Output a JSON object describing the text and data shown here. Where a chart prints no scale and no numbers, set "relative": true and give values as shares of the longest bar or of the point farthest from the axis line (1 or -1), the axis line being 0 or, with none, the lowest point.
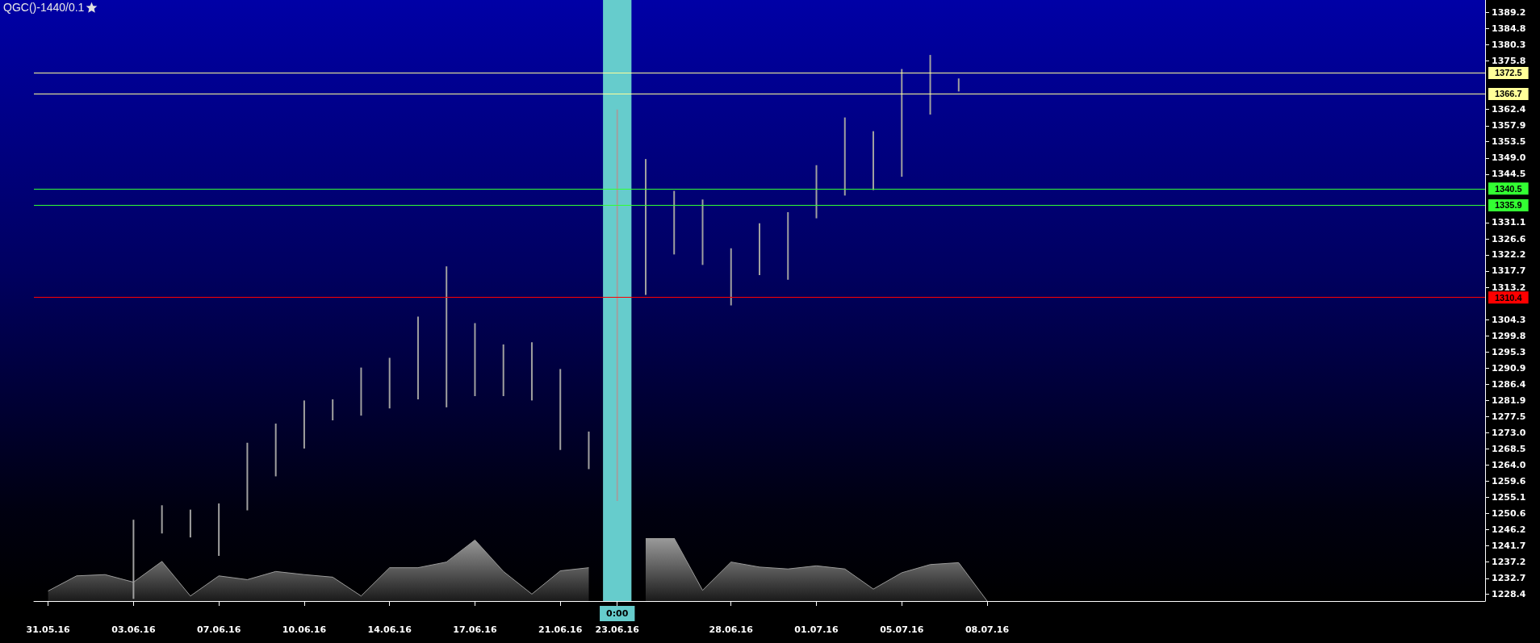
{
  "chart_data": [
    {
      "type": "bar",
      "title": "QGC()-1440/0.1",
      "categories": [
        "31.05.16",
        null,
        null,
        "03.06.16",
        null,
        null,
        "07.06.16",
        null,
        null,
        "10.06.16",
        null,
        null,
        "14.06.16",
        null,
        null,
        "17.06.16",
        null,
        null,
        "21.06.16",
        null,
        "23.06.16",
        null,
        null,
        null,
        "28.06.16",
        null,
        null,
        "01.07.16",
        null,
        null,
        "05.07.16",
        null,
        null,
        "08.07.16",
        null,
        null,
        null,
        null,
        null,
        null,
        null,
        null,
        null,
        null,
        null,
        null,
        null,
        null,
        null,
        null,
        null
      ],
      "base": [
        null,
        null,
        null,
        1227.0,
        1245.1,
        1244.0,
        1238.9,
        1251.5,
        1260.9,
        1268.6,
        1276.4,
        1277.7,
        1279.7,
        1282.2,
        1280.0,
        1283.1,
        1283.1,
        1281.9,
        1268.2,
        1262.9,
        1254.1,
        1311.1,
        1322.3,
        1319.4,
        1308.2,
        1316.6,
        1315.3,
        1332.3,
        1338.6,
        1340.1,
        1343.8,
        1361.0,
        1367.4,
        null,
        null,
        null,
        null,
        null,
        null,
        null,
        null,
        null,
        null,
        null,
        null,
        null,
        null,
        null,
        null,
        null,
        null
      ],
      "values": [
        null,
        null,
        null,
        21.9,
        7.8,
        7.7,
        14.5,
        18.7,
        14.6,
        13.3,
        5.8,
        13.3,
        14.0,
        22.9,
        39.0,
        20.2,
        14.3,
        16.1,
        22.4,
        10.4,
        108.3,
        37.6,
        17.6,
        18.1,
        15.8,
        14.3,
        18.7,
        14.7,
        21.6,
        16.3,
        29.8,
        16.5,
        3.6,
        null,
        null,
        null,
        null,
        null,
        null,
        null,
        null,
        null,
        null,
        null,
        null,
        null,
        null,
        null,
        null,
        null,
        null
      ],
      "color": "#a0a0a0",
      "ylim": [
        1226.4,
        1392.7
      ],
      "yticks": [
        1389.2,
        1384.8,
        1380.3,
        1375.8,
        1362.4,
        1357.9,
        1353.5,
        {
          "value": 1349,
          "label": "1349.0"
        },
        1344.5,
        1331.1,
        1326.6,
        1322.2,
        1317.7,
        1313.2,
        1304.3,
        1299.8,
        1295.3,
        1290.9,
        1286.4,
        1281.9,
        1277.5,
        {
          "value": 1273,
          "label": "1273.0"
        },
        1268.5,
        {
          "value": 1264,
          "label": "1264.0"
        },
        1259.6,
        1255.1,
        1250.6,
        1246.2,
        1241.7,
        1237.2,
        1232.7,
        1228.4
      ],
      "ref_lines": [
        {
          "axis": "y",
          "value": 1372.5,
          "label": "1372.5",
          "color": "#ffff99"
        },
        {
          "axis": "y",
          "value": 1366.7,
          "label": "1366.7",
          "color": "#ffff99"
        },
        {
          "axis": "y",
          "value": 1340.5,
          "label": "1340.5",
          "color": "#33ff33"
        },
        {
          "axis": "y",
          "value": 1335.9,
          "label": "1335.9",
          "color": "#33ff33"
        },
        {
          "axis": "y",
          "value": 1310.4,
          "label": "1310.4",
          "color": "#ff0000"
        }
      ],
      "bands": [
        {
          "axis": "x",
          "from": "23.06.16",
          "to": "23.06.16",
          "label": "0:00",
          "color": "#66cccc"
        }
      ],
      "grid": false
    },
    {
      "type": "area",
      "relative": true,
      "categories": [
        null,
        null,
        null,
        null,
        null,
        null,
        null,
        null,
        null,
        null,
        null,
        null,
        null,
        null,
        null,
        null,
        null,
        null,
        null,
        null,
        null,
        null,
        null,
        null,
        null,
        null,
        null,
        null,
        null,
        null,
        null,
        null,
        null,
        null,
        null,
        null,
        null,
        null,
        null,
        null,
        null,
        null,
        null,
        null,
        null,
        null,
        null,
        null,
        null,
        null,
        null
      ],
      "values": [
        0.16,
        0.4,
        0.42,
        0.3,
        0.63,
        0.08,
        0.4,
        0.34,
        0.47,
        0.42,
        0.38,
        0.08,
        0.53,
        0.53,
        0.62,
        0.97,
        0.47,
        0.11,
        0.48,
        0.53,
        null,
        1,
        1,
        0.17,
        0.62,
        0.54,
        0.51,
        0.56,
        0.51,
        0.19,
        0.45,
        0.58,
        0.61,
        0,
        null,
        null,
        null,
        null,
        null,
        null,
        null,
        null,
        null,
        null,
        null,
        null,
        null,
        null,
        null,
        null,
        null
      ],
      "color": "#9a9a9a",
      "tick_labels": false
    }
  ]
}
